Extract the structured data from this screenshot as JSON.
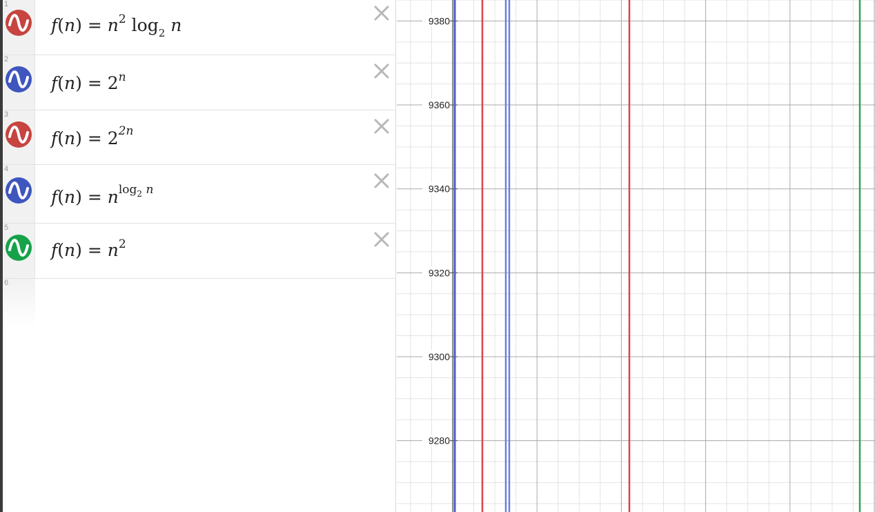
{
  "expressions": [
    {
      "index": "1",
      "color": "#c74440",
      "icon": "wave-icon",
      "lhs": "f",
      "arg": "n",
      "parts": {
        "base": "n",
        "exp": "2",
        "fn": "log",
        "fnsub": "2",
        "var": "n"
      }
    },
    {
      "index": "2",
      "color": "#2d70b3",
      "icon": "wave-icon",
      "lhs": "f",
      "arg": "n",
      "parts": {
        "base": "2",
        "exp": "n"
      }
    },
    {
      "index": "3",
      "color": "#c74440",
      "icon": "wave-icon",
      "lhs": "f",
      "arg": "n",
      "parts": {
        "base": "2",
        "exp": "2n"
      }
    },
    {
      "index": "4",
      "color": "#2d70b3",
      "icon": "wave-icon",
      "lhs": "f",
      "arg": "n",
      "parts": {
        "base": "n",
        "fn": "log",
        "fnsub": "2",
        "var": "n"
      }
    },
    {
      "index": "5",
      "color": "#388c46",
      "icon": "wave-icon",
      "lhs": "f",
      "arg": "n",
      "parts": {
        "base": "n",
        "exp": "2"
      }
    }
  ],
  "empty_row_index": "6",
  "delete_icon": "close-icon",
  "graph": {
    "y_ticks": [
      "9380",
      "9360",
      "9340",
      "9320",
      "9300",
      "9280"
    ],
    "y_range": [
      9263,
      9385
    ],
    "grid": true,
    "curve_colors": {
      "red": "#d9434a",
      "blue": "#4a5ec4",
      "green": "#2aa45a"
    }
  }
}
